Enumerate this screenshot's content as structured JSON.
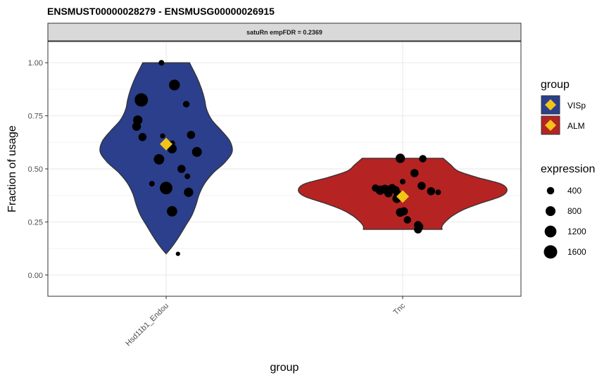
{
  "chart_data": {
    "type": "violin",
    "title": "ENSMUST00000028279  -  ENSMUSG00000026915",
    "facet_label": "satuRn empFDR = 0.2369",
    "xlabel": "group",
    "ylabel": "Fraction of usage",
    "ylim": [
      -0.1,
      1.1
    ],
    "yticks": [
      0,
      0.25,
      0.5,
      0.75,
      1
    ],
    "ytick_labels": [
      "0.00",
      "0.25",
      "0.50",
      "0.75",
      "1.00"
    ],
    "categories": [
      "Hsd11b1_Endou",
      "Tnc"
    ],
    "grid": true,
    "legend_placement": "right",
    "fill_legend": {
      "title": "group",
      "entries": [
        {
          "label": "VISp",
          "fill": "#2b3f8c"
        },
        {
          "label": "ALM",
          "fill": "#b52323"
        }
      ]
    },
    "size_legend": {
      "title": "expression",
      "entries": [
        {
          "label": "400",
          "value": 400
        },
        {
          "label": "800",
          "value": 800
        },
        {
          "label": "1200",
          "value": 1200
        },
        {
          "label": "1600",
          "value": 1600
        }
      ]
    },
    "colors": {
      "VISp": "#2b3f8c",
      "ALM": "#b52323",
      "mean_marker": "#f2c418",
      "points": "#000000",
      "violin_outline": "#333333"
    },
    "violins": [
      {
        "category": "Hsd11b1_Endou",
        "fill": "#2b3f8c",
        "mean": 0.617,
        "density": [
          [
            0.1,
            0.0
          ],
          [
            0.13,
            0.05
          ],
          [
            0.18,
            0.12
          ],
          [
            0.23,
            0.18
          ],
          [
            0.28,
            0.24
          ],
          [
            0.33,
            0.28
          ],
          [
            0.38,
            0.31
          ],
          [
            0.43,
            0.36
          ],
          [
            0.48,
            0.44
          ],
          [
            0.53,
            0.55
          ],
          [
            0.58,
            0.62
          ],
          [
            0.63,
            0.6
          ],
          [
            0.68,
            0.52
          ],
          [
            0.73,
            0.43
          ],
          [
            0.78,
            0.38
          ],
          [
            0.83,
            0.36
          ],
          [
            0.88,
            0.33
          ],
          [
            0.93,
            0.29
          ],
          [
            0.97,
            0.25
          ],
          [
            1.0,
            0.22
          ]
        ],
        "points": [
          {
            "y": 1.0,
            "expression": 200,
            "jitter": -0.04
          },
          {
            "y": 0.895,
            "expression": 1000,
            "jitter": 0.07
          },
          {
            "y": 0.825,
            "expression": 1600,
            "jitter": -0.21
          },
          {
            "y": 0.805,
            "expression": 300,
            "jitter": 0.17
          },
          {
            "y": 0.73,
            "expression": 700,
            "jitter": -0.24
          },
          {
            "y": 0.7,
            "expression": 600,
            "jitter": -0.25
          },
          {
            "y": 0.66,
            "expression": 500,
            "jitter": 0.21
          },
          {
            "y": 0.655,
            "expression": 150,
            "jitter": -0.03
          },
          {
            "y": 0.65,
            "expression": 500,
            "jitter": -0.2
          },
          {
            "y": 0.62,
            "expression": 250,
            "jitter": 0.05
          },
          {
            "y": 0.595,
            "expression": 700,
            "jitter": 0.05
          },
          {
            "y": 0.58,
            "expression": 800,
            "jitter": 0.26
          },
          {
            "y": 0.545,
            "expression": 900,
            "jitter": -0.06
          },
          {
            "y": 0.5,
            "expression": 500,
            "jitter": 0.13
          },
          {
            "y": 0.465,
            "expression": 200,
            "jitter": 0.18
          },
          {
            "y": 0.43,
            "expression": 200,
            "jitter": -0.12
          },
          {
            "y": 0.41,
            "expression": 1400,
            "jitter": 0.0
          },
          {
            "y": 0.39,
            "expression": 700,
            "jitter": 0.19
          },
          {
            "y": 0.3,
            "expression": 900,
            "jitter": 0.05
          },
          {
            "y": 0.1,
            "expression": 100,
            "jitter": 0.1
          }
        ]
      },
      {
        "category": "Tnc",
        "fill": "#b52323",
        "mean": 0.37,
        "density": [
          [
            0.215,
            0.37
          ],
          [
            0.23,
            0.37
          ],
          [
            0.25,
            0.4
          ],
          [
            0.28,
            0.47
          ],
          [
            0.31,
            0.58
          ],
          [
            0.34,
            0.74
          ],
          [
            0.37,
            0.92
          ],
          [
            0.4,
            0.98
          ],
          [
            0.43,
            0.92
          ],
          [
            0.46,
            0.7
          ],
          [
            0.49,
            0.52
          ],
          [
            0.52,
            0.45
          ],
          [
            0.55,
            0.38
          ]
        ],
        "points": [
          {
            "y": 0.55,
            "expression": 700,
            "jitter": -0.02
          },
          {
            "y": 0.548,
            "expression": 400,
            "jitter": 0.17
          },
          {
            "y": 0.48,
            "expression": 500,
            "jitter": 0.1
          },
          {
            "y": 0.44,
            "expression": 200,
            "jitter": 0.0
          },
          {
            "y": 0.42,
            "expression": 500,
            "jitter": 0.16
          },
          {
            "y": 0.41,
            "expression": 400,
            "jitter": -0.23
          },
          {
            "y": 0.41,
            "expression": 500,
            "jitter": -0.09
          },
          {
            "y": 0.405,
            "expression": 600,
            "jitter": -0.15
          },
          {
            "y": 0.4,
            "expression": 700,
            "jitter": -0.19
          },
          {
            "y": 0.4,
            "expression": 500,
            "jitter": -0.06
          },
          {
            "y": 0.395,
            "expression": 500,
            "jitter": 0.24
          },
          {
            "y": 0.39,
            "expression": 200,
            "jitter": 0.3
          },
          {
            "y": 0.385,
            "expression": 500,
            "jitter": -0.12
          },
          {
            "y": 0.38,
            "expression": 500,
            "jitter": -0.04
          },
          {
            "y": 0.36,
            "expression": 600,
            "jitter": -0.05
          },
          {
            "y": 0.3,
            "expression": 500,
            "jitter": 0.01
          },
          {
            "y": 0.295,
            "expression": 600,
            "jitter": -0.02
          },
          {
            "y": 0.26,
            "expression": 400,
            "jitter": 0.04
          },
          {
            "y": 0.235,
            "expression": 500,
            "jitter": 0.13
          },
          {
            "y": 0.228,
            "expression": 500,
            "jitter": 0.14
          },
          {
            "y": 0.215,
            "expression": 500,
            "jitter": 0.13
          }
        ]
      }
    ]
  }
}
